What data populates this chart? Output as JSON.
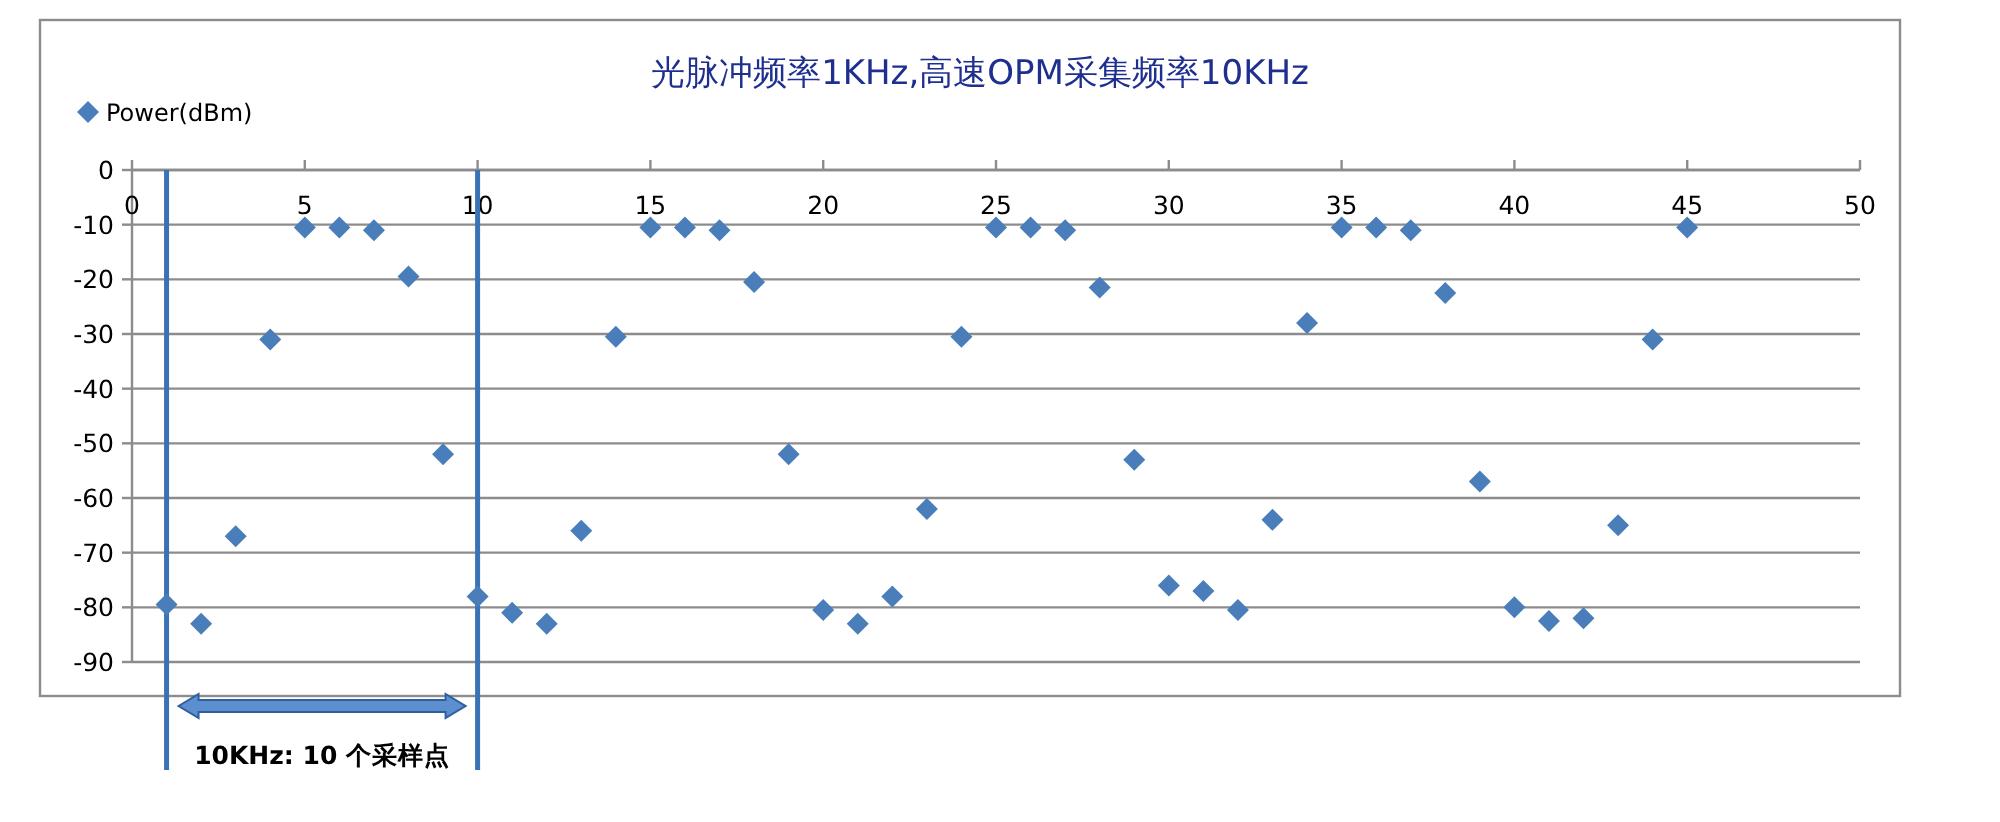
{
  "chart_data": {
    "type": "scatter",
    "title": "光脉冲频率1KHz,高速OPM采集频率10KHz",
    "x": [
      1,
      2,
      3,
      4,
      5,
      6,
      7,
      8,
      9,
      10,
      11,
      12,
      13,
      14,
      15,
      16,
      17,
      18,
      19,
      20,
      21,
      22,
      23,
      24,
      25,
      26,
      27,
      28,
      29,
      30,
      31,
      32,
      33,
      34,
      35,
      36,
      37,
      38,
      39,
      40,
      41,
      42,
      43,
      44,
      45
    ],
    "series": [
      {
        "name": "Power(dBm)",
        "color": "#4a7ebb",
        "values": [
          -79.5,
          -83,
          -67,
          -31,
          -10.5,
          -10.5,
          -11,
          -19.5,
          -52,
          -78,
          -81,
          -83,
          -66,
          -30.5,
          -10.5,
          -10.5,
          -11,
          -20.5,
          -52,
          -80.5,
          -83,
          -78,
          -62,
          -30.5,
          -10.5,
          -10.5,
          -11,
          -21.5,
          -53,
          -76,
          -77,
          -80.5,
          -64,
          -28,
          -10.5,
          -10.5,
          -11,
          -22.5,
          -57,
          -80,
          -82.5,
          -82,
          -65,
          -31,
          -10.5
        ]
      }
    ],
    "xlim": [
      0,
      50
    ],
    "xticks": [
      0,
      5,
      10,
      15,
      20,
      25,
      30,
      35,
      40,
      45,
      50
    ],
    "ylim": [
      -90,
      0
    ],
    "yticks": [
      0,
      -10,
      -20,
      -30,
      -40,
      -50,
      -60,
      -70,
      -80,
      -90
    ],
    "grid": "y",
    "legend": "top left",
    "marker": "diamond",
    "ref_lines": [
      {
        "axis": "x",
        "value": 1,
        "color": "#3a72b8"
      },
      {
        "axis": "x",
        "value": 10,
        "color": "#3a72b8"
      }
    ],
    "annotations": [
      "10KHz: 10 个采样点"
    ]
  }
}
